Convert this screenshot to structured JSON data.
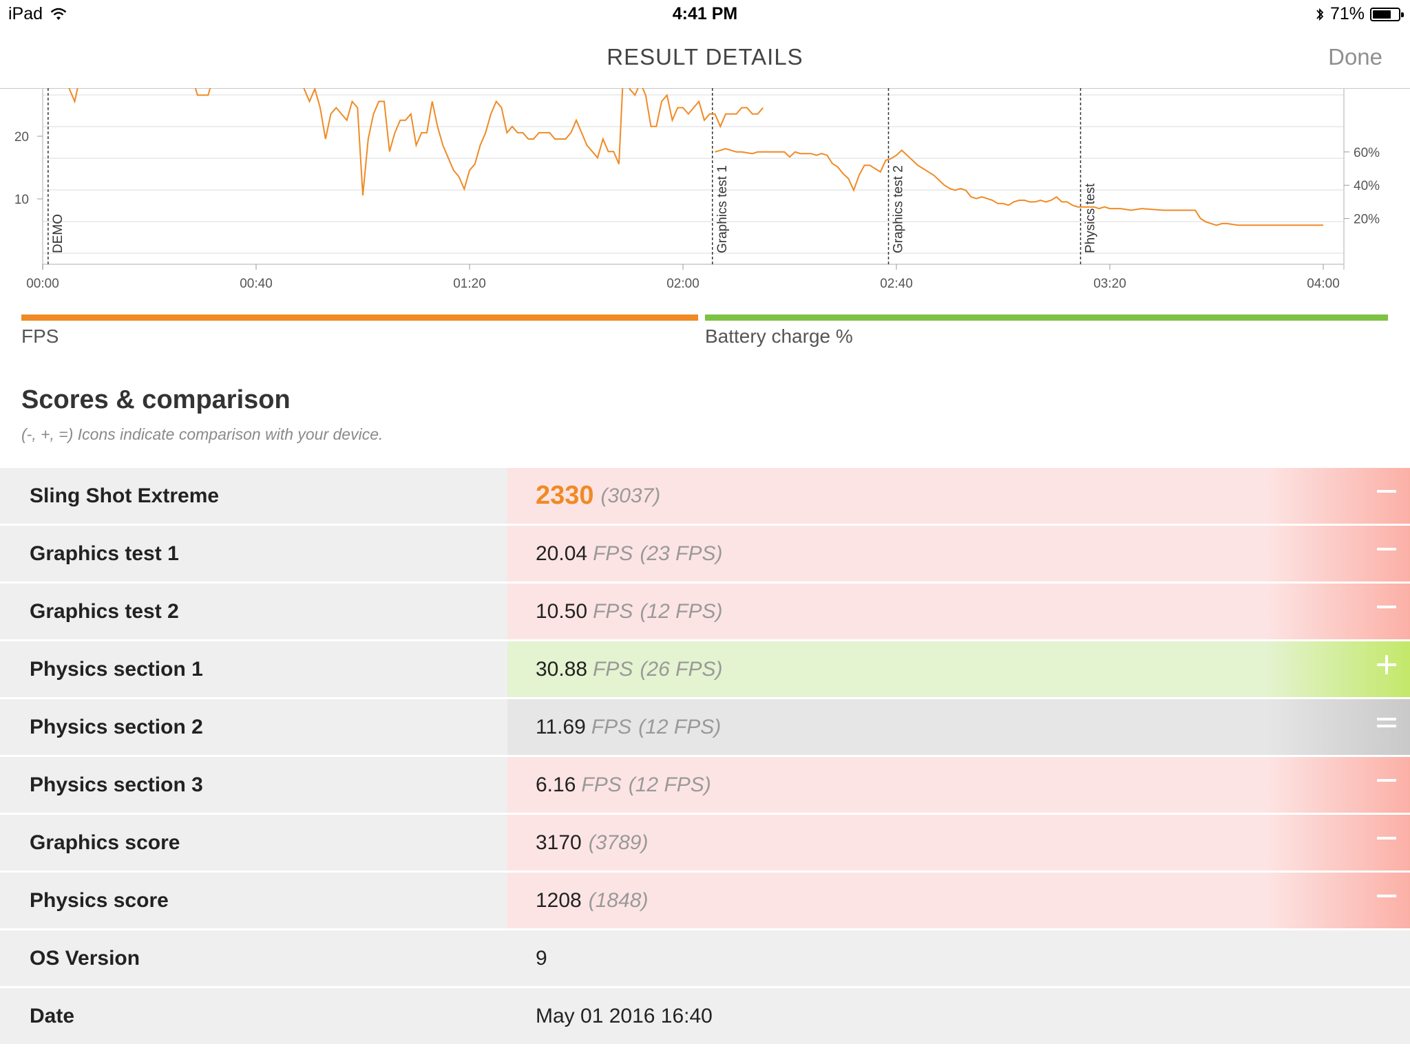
{
  "status": {
    "device": "iPad",
    "time": "4:41 PM",
    "battery": "71%",
    "battery_fraction": 0.71
  },
  "nav": {
    "title": "RESULT DETAILS",
    "done": "Done"
  },
  "legend": {
    "fps": "FPS",
    "battery": "Battery charge %"
  },
  "scores": {
    "title": "Scores & comparison",
    "subtitle": "(-, +, =) Icons indicate comparison with your device.",
    "rows": [
      {
        "label": "Sling Shot Extreme",
        "value": "2330",
        "unit": "",
        "compare": "(3037)",
        "status": "neg"
      },
      {
        "label": "Graphics test 1",
        "value": "20.04",
        "unit": "FPS",
        "compare": "(23 FPS)",
        "status": "neg"
      },
      {
        "label": "Graphics test 2",
        "value": "10.50",
        "unit": "FPS",
        "compare": "(12 FPS)",
        "status": "neg"
      },
      {
        "label": "Physics section 1",
        "value": "30.88",
        "unit": "FPS",
        "compare": "(26 FPS)",
        "status": "pos"
      },
      {
        "label": "Physics section 2",
        "value": "11.69",
        "unit": "FPS",
        "compare": "(12 FPS)",
        "status": "eq"
      },
      {
        "label": "Physics section 3",
        "value": "6.16",
        "unit": "FPS",
        "compare": "(12 FPS)",
        "status": "neg"
      },
      {
        "label": "Graphics score",
        "value": "3170",
        "unit": "",
        "compare": "(3789)",
        "status": "neg"
      },
      {
        "label": "Physics score",
        "value": "1208",
        "unit": "",
        "compare": "(1848)",
        "status": "neg"
      },
      {
        "label": "OS Version",
        "value": "9",
        "unit": "",
        "compare": "",
        "status": "plain"
      },
      {
        "label": "Date",
        "value": "May 01 2016 16:40",
        "unit": "",
        "compare": "",
        "status": "plain"
      }
    ]
  },
  "colors": {
    "fps": "#f08a24",
    "battery": "#7dc242",
    "accent": "#f08a24"
  },
  "chart_data": {
    "type": "line",
    "x_unit": "mm:ss",
    "x_ticks": [
      "00:00",
      "00:40",
      "01:20",
      "02:00",
      "02:40",
      "03:20",
      "04:00"
    ],
    "y_left_ticks": [
      "10",
      "20"
    ],
    "y_right_ticks": [
      "20%",
      "40%",
      "60%"
    ],
    "x_range_seconds": [
      0,
      240
    ],
    "y_range": [
      0,
      28
    ],
    "markers": [
      {
        "label": "DEMO",
        "x": 0.5
      },
      {
        "label": "Graphics test 1",
        "x": 125
      },
      {
        "label": "Graphics test 2",
        "x": 158
      },
      {
        "label": "Physics test",
        "x": 194
      }
    ],
    "series": [
      {
        "name": "FPS",
        "points": [
          [
            1,
            30
          ],
          [
            4,
            30
          ],
          [
            6,
            26
          ],
          [
            7,
            30
          ],
          [
            10,
            32
          ],
          [
            28,
            30
          ],
          [
            29,
            27
          ],
          [
            31,
            27
          ],
          [
            32,
            30
          ],
          [
            48,
            30
          ],
          [
            49,
            28
          ],
          [
            50,
            26
          ],
          [
            51,
            28
          ],
          [
            52,
            25
          ],
          [
            53,
            20
          ],
          [
            54,
            24
          ],
          [
            55,
            25
          ],
          [
            56,
            24
          ],
          [
            57,
            23
          ],
          [
            58,
            26
          ],
          [
            59,
            25
          ],
          [
            60,
            11
          ],
          [
            61,
            20
          ],
          [
            62,
            24
          ],
          [
            63,
            26
          ],
          [
            64,
            26
          ],
          [
            65,
            18
          ],
          [
            66,
            21
          ],
          [
            67,
            23
          ],
          [
            68,
            23
          ],
          [
            69,
            24
          ],
          [
            70,
            19
          ],
          [
            71,
            21
          ],
          [
            72,
            21
          ],
          [
            73,
            26
          ],
          [
            74,
            22
          ],
          [
            75,
            19
          ],
          [
            76,
            17
          ],
          [
            77,
            15
          ],
          [
            78,
            14
          ],
          [
            79,
            12
          ],
          [
            80,
            15
          ],
          [
            81,
            16
          ],
          [
            82,
            19
          ],
          [
            83,
            21
          ],
          [
            84,
            24
          ],
          [
            85,
            26
          ],
          [
            86,
            25
          ],
          [
            87,
            21
          ],
          [
            88,
            22
          ],
          [
            89,
            21
          ],
          [
            90,
            21
          ],
          [
            91,
            20
          ],
          [
            92,
            20
          ],
          [
            93,
            21
          ],
          [
            94,
            21
          ],
          [
            95,
            21
          ],
          [
            96,
            20
          ],
          [
            97,
            20
          ],
          [
            98,
            20
          ],
          [
            99,
            21
          ],
          [
            100,
            23
          ],
          [
            101,
            21
          ],
          [
            102,
            19
          ],
          [
            103,
            18
          ],
          [
            104,
            17
          ],
          [
            105,
            20
          ],
          [
            106,
            18
          ],
          [
            107,
            18
          ],
          [
            108,
            16
          ],
          [
            109,
            34
          ],
          [
            110,
            28
          ],
          [
            111,
            27
          ],
          [
            112,
            29
          ],
          [
            113,
            27
          ],
          [
            114,
            22
          ],
          [
            115,
            22
          ],
          [
            116,
            26
          ],
          [
            117,
            27
          ],
          [
            118,
            23
          ],
          [
            119,
            25
          ],
          [
            120,
            25
          ],
          [
            121,
            24
          ],
          [
            122,
            25
          ],
          [
            123,
            26
          ],
          [
            124,
            23
          ],
          [
            125,
            24
          ],
          [
            126,
            24
          ],
          [
            127,
            22
          ],
          [
            128,
            24
          ],
          [
            129,
            24
          ],
          [
            130,
            24
          ],
          [
            131,
            25
          ],
          [
            132,
            25
          ],
          [
            133,
            24
          ],
          [
            134,
            24
          ],
          [
            135,
            25
          ]
        ]
      },
      {
        "name": "Battery charge %",
        "points": [
          [
            126,
            60
          ],
          [
            128,
            62
          ],
          [
            130,
            60
          ],
          [
            131,
            60
          ],
          [
            133,
            59
          ],
          [
            134,
            60
          ],
          [
            136,
            60
          ],
          [
            139,
            60
          ],
          [
            140,
            57
          ],
          [
            141,
            60
          ],
          [
            142,
            59
          ],
          [
            143,
            59
          ],
          [
            144,
            59
          ],
          [
            145,
            58
          ],
          [
            146,
            59
          ],
          [
            147,
            58
          ],
          [
            148,
            53
          ],
          [
            149,
            51
          ],
          [
            150,
            47
          ],
          [
            151,
            44
          ],
          [
            152,
            37
          ],
          [
            153,
            46
          ],
          [
            154,
            52
          ],
          [
            155,
            52
          ],
          [
            156,
            50
          ],
          [
            157,
            48
          ],
          [
            158,
            55
          ],
          [
            159,
            56
          ],
          [
            160,
            58
          ],
          [
            161,
            61
          ],
          [
            162,
            58
          ],
          [
            163,
            55
          ],
          [
            164,
            52
          ],
          [
            165,
            50
          ],
          [
            166,
            48
          ],
          [
            167,
            46
          ],
          [
            168,
            43
          ],
          [
            169,
            40
          ],
          [
            170,
            38
          ],
          [
            171,
            37
          ],
          [
            172,
            38
          ],
          [
            173,
            37
          ],
          [
            174,
            33
          ],
          [
            175,
            32
          ],
          [
            176,
            33
          ],
          [
            177,
            32
          ],
          [
            178,
            31
          ],
          [
            179,
            29
          ],
          [
            180,
            29
          ],
          [
            181,
            28
          ],
          [
            182,
            30
          ],
          [
            183,
            31
          ],
          [
            184,
            31
          ],
          [
            185,
            30
          ],
          [
            186,
            30
          ],
          [
            187,
            31
          ],
          [
            188,
            30
          ],
          [
            189,
            31
          ],
          [
            190,
            33
          ],
          [
            191,
            30
          ],
          [
            192,
            30
          ],
          [
            193,
            28
          ],
          [
            194,
            27
          ],
          [
            195,
            27
          ],
          [
            196,
            27
          ],
          [
            197,
            27
          ],
          [
            198,
            26
          ],
          [
            199,
            27
          ],
          [
            200,
            26
          ],
          [
            202,
            26
          ],
          [
            204,
            25
          ],
          [
            206,
            26
          ],
          [
            210,
            25
          ],
          [
            214,
            25
          ],
          [
            216,
            25
          ],
          [
            217,
            20
          ],
          [
            218,
            18
          ],
          [
            219,
            17
          ],
          [
            220,
            16
          ],
          [
            221,
            17
          ],
          [
            222,
            17
          ],
          [
            224,
            16
          ],
          [
            226,
            16
          ],
          [
            228,
            16
          ],
          [
            230,
            16
          ],
          [
            232,
            16
          ],
          [
            234,
            16
          ],
          [
            236,
            16
          ],
          [
            238,
            16
          ],
          [
            240,
            16
          ]
        ]
      }
    ]
  }
}
